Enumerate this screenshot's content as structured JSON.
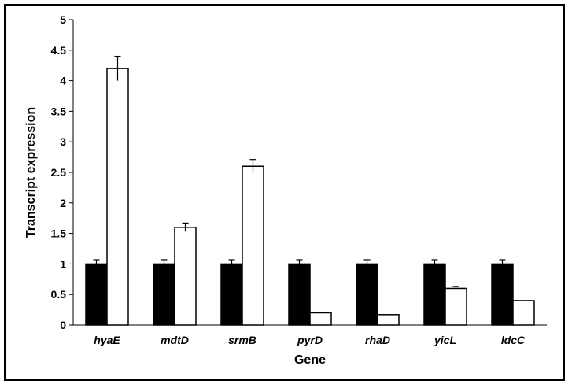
{
  "chart_data": {
    "type": "bar",
    "title": "",
    "xlabel": "Gene",
    "ylabel": "Transcript expression",
    "ylim": [
      0,
      5
    ],
    "yticks": [
      "0",
      "0.5",
      "1",
      "1.5",
      "2",
      "2.5",
      "3",
      "3.5",
      "4",
      "4.5",
      "5"
    ],
    "grid": false,
    "legend": "none",
    "categories": [
      "hyaE",
      "mdtD",
      "srmB",
      "pyrD",
      "rhaD",
      "yicL",
      "ldcC"
    ],
    "series": [
      {
        "color": "#000000",
        "values": [
          1,
          1,
          1,
          1,
          1,
          1,
          1
        ],
        "errors": [
          0.07,
          0.07,
          0.07,
          0.07,
          0.07,
          0.07,
          0.07
        ]
      },
      {
        "color": "#ffffff",
        "values": [
          4.2,
          1.6,
          2.6,
          0.2,
          0.17,
          0.6,
          0.4
        ],
        "errors": [
          0.2,
          0.07,
          0.11,
          0.0,
          0.0,
          0.03,
          0.0
        ]
      }
    ]
  }
}
